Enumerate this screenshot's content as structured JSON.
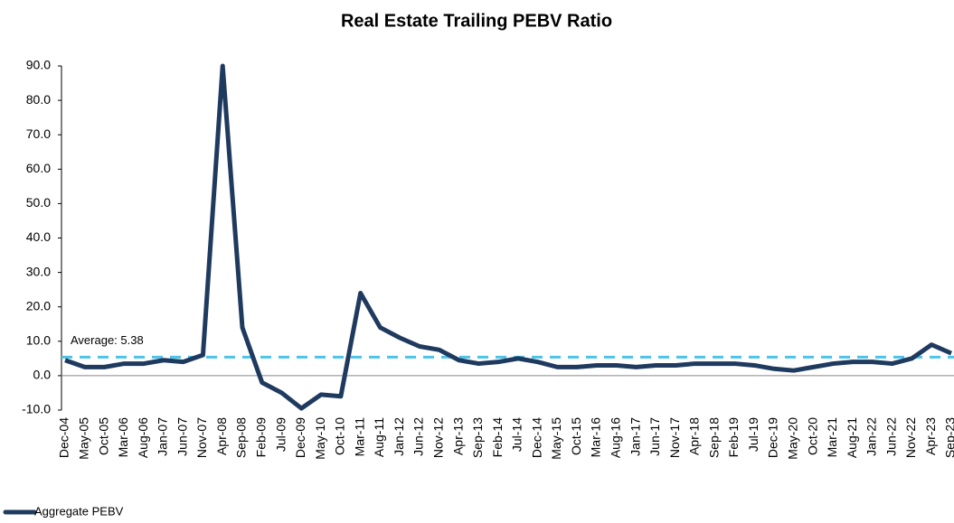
{
  "chart_data": {
    "type": "line",
    "title": "Real Estate Trailing PEBV Ratio",
    "categories": [
      "Dec-04",
      "May-05",
      "Oct-05",
      "Mar-06",
      "Aug-06",
      "Jan-07",
      "Jun-07",
      "Nov-07",
      "Apr-08",
      "Sep-08",
      "Feb-09",
      "Jul-09",
      "Dec-09",
      "May-10",
      "Oct-10",
      "Mar-11",
      "Aug-11",
      "Jan-12",
      "Jun-12",
      "Nov-12",
      "Apr-13",
      "Sep-13",
      "Feb-14",
      "Jul-14",
      "Dec-14",
      "May-15",
      "Oct-15",
      "Mar-16",
      "Aug-16",
      "Jan-17",
      "Jun-17",
      "Nov-17",
      "Apr-18",
      "Sep-18",
      "Feb-19",
      "Jul-19",
      "Dec-19",
      "May-20",
      "Oct-20",
      "Mar-21",
      "Aug-21",
      "Jan-22",
      "Jun-22",
      "Nov-22",
      "Apr-23",
      "Sep-23"
    ],
    "series": [
      {
        "name": "Aggregate PEBV",
        "color": "#1f3a5f",
        "values": [
          4.5,
          2.5,
          2.5,
          3.5,
          3.5,
          4.5,
          4,
          6,
          90,
          14,
          -2,
          -5,
          -9.5,
          -5.5,
          -6,
          24,
          14,
          11,
          8.5,
          7.5,
          4.5,
          3.5,
          4,
          5,
          4,
          2.5,
          2.5,
          3,
          3,
          2.5,
          3,
          3,
          3.5,
          3.5,
          3.5,
          3,
          2,
          1.5,
          2.5,
          3.5,
          4,
          4,
          3.5,
          5,
          9,
          6.5
        ]
      }
    ],
    "average": {
      "value": 5.38,
      "label": "Average: 5.38",
      "color": "#4dc3e8"
    },
    "ylim": [
      -10,
      90
    ],
    "yticks": [
      {
        "value": -10,
        "label": "-10.0"
      },
      {
        "value": 0,
        "label": "0.0"
      },
      {
        "value": 10,
        "label": "10.0"
      },
      {
        "value": 20,
        "label": "20.0"
      },
      {
        "value": 30,
        "label": "30.0"
      },
      {
        "value": 40,
        "label": "40.0"
      },
      {
        "value": 50,
        "label": "50.0"
      },
      {
        "value": 60,
        "label": "60.0"
      },
      {
        "value": 70,
        "label": "70.0"
      },
      {
        "value": 80,
        "label": "80.0"
      },
      {
        "value": 90,
        "label": "90.0"
      }
    ],
    "grid": false,
    "legend": "bottom-left"
  }
}
